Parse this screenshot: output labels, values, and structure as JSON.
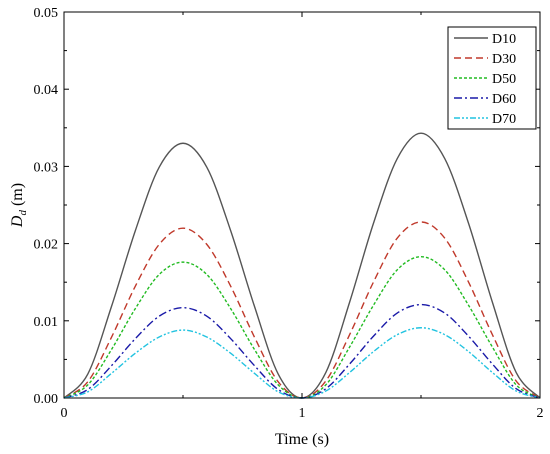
{
  "chart_data": {
    "type": "line",
    "xlabel": "Time (s)",
    "ylabel_main": "D",
    "ylabel_sub": "d",
    "ylabel_unit": " (m)",
    "xlim": [
      0,
      2
    ],
    "ylim": [
      0,
      0.05
    ],
    "x_ticks": [
      "0",
      "1",
      "2"
    ],
    "y_ticks": [
      "0.00",
      "0.01",
      "0.02",
      "0.03",
      "0.04",
      "0.05"
    ],
    "grid": false,
    "legend_position": "top-right",
    "x": [
      0,
      0.1,
      0.2,
      0.3,
      0.4,
      0.5,
      0.6,
      0.7,
      0.8,
      0.9,
      1.0,
      1.1,
      1.2,
      1.3,
      1.4,
      1.5,
      1.6,
      1.7,
      1.8,
      1.9,
      2.0
    ],
    "series": [
      {
        "name": "D10",
        "color": "#555555",
        "dash": "",
        "values": [
          0,
          0.0031,
          0.0119,
          0.0217,
          0.0299,
          0.033,
          0.0299,
          0.0217,
          0.0119,
          0.0031,
          0,
          0.0033,
          0.0124,
          0.0226,
          0.031,
          0.0343,
          0.031,
          0.0226,
          0.0124,
          0.0033,
          0
        ]
      },
      {
        "name": "D30",
        "color": "#c0392b",
        "dash": "7,4",
        "values": [
          0,
          0.0021,
          0.0079,
          0.0145,
          0.0199,
          0.022,
          0.0199,
          0.0145,
          0.0079,
          0.0021,
          0,
          0.0022,
          0.0082,
          0.015,
          0.0207,
          0.0228,
          0.0207,
          0.015,
          0.0082,
          0.0022,
          0
        ]
      },
      {
        "name": "D50",
        "color": "#22bb22",
        "dash": "3,2",
        "values": [
          0,
          0.0017,
          0.0063,
          0.0116,
          0.016,
          0.0176,
          0.016,
          0.0116,
          0.0063,
          0.0017,
          0,
          0.0017,
          0.0066,
          0.012,
          0.0166,
          0.0183,
          0.0166,
          0.012,
          0.0066,
          0.0017,
          0
        ]
      },
      {
        "name": "D60",
        "color": "#1a1aa8",
        "dash": "8,3,2,3",
        "values": [
          0,
          0.0011,
          0.0042,
          0.0077,
          0.0106,
          0.0117,
          0.0106,
          0.0077,
          0.0042,
          0.0011,
          0,
          0.0012,
          0.0044,
          0.008,
          0.011,
          0.0121,
          0.011,
          0.008,
          0.0044,
          0.0012,
          0
        ]
      },
      {
        "name": "D70",
        "color": "#22c3e0",
        "dash": "6,2,2,2,2,2",
        "values": [
          0,
          0.0008,
          0.0032,
          0.0058,
          0.0079,
          0.0088,
          0.0079,
          0.0058,
          0.0032,
          0.0008,
          0,
          0.0009,
          0.0033,
          0.006,
          0.0082,
          0.0091,
          0.0082,
          0.006,
          0.0033,
          0.0009,
          0
        ]
      }
    ]
  }
}
